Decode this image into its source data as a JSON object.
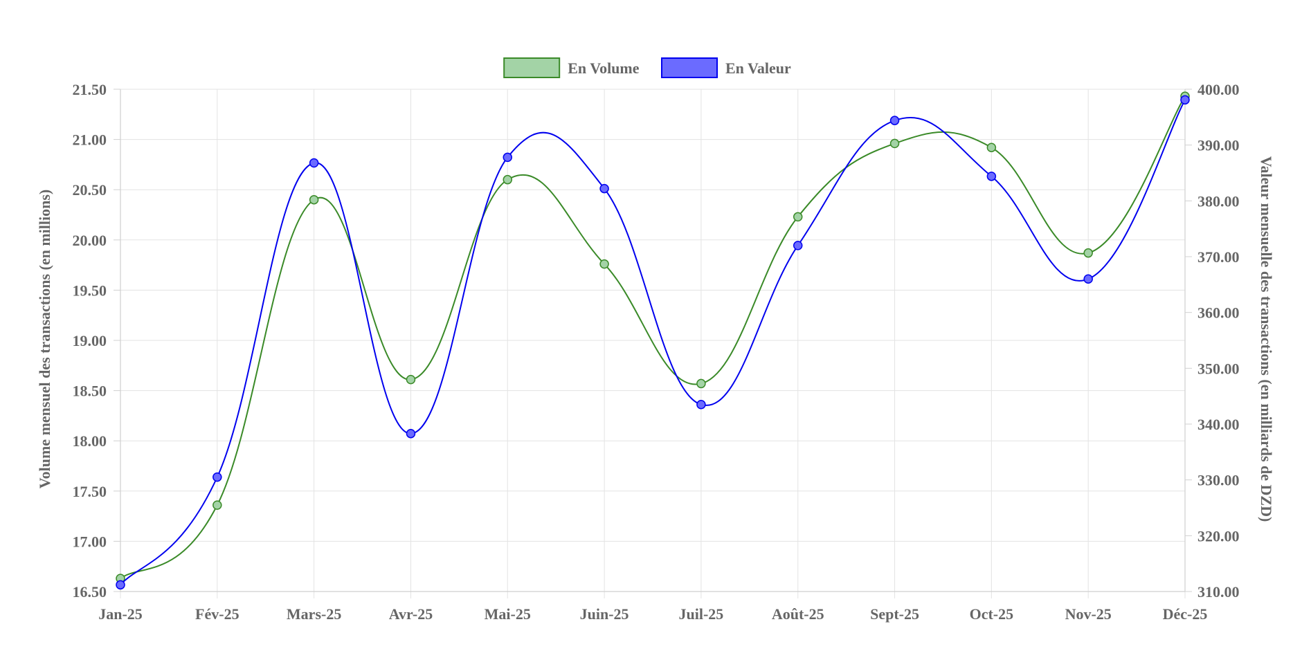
{
  "chart_data": {
    "type": "line",
    "categories": [
      "Jan-25",
      "Fév-25",
      "Mars-25",
      "Avr-25",
      "Mai-25",
      "Juin-25",
      "Juil-25",
      "Août-25",
      "Sept-25",
      "Oct-25",
      "Nov-25",
      "Déc-25"
    ],
    "series": [
      {
        "name": "En Volume",
        "axis": "left",
        "color": "#3a8a28",
        "fill": "#a3d3a6",
        "values": [
          16.63,
          17.36,
          20.4,
          18.61,
          20.6,
          19.76,
          18.57,
          20.23,
          20.96,
          20.92,
          19.87,
          21.43
        ]
      },
      {
        "name": "En Valeur",
        "axis": "right",
        "color": "#0000ee",
        "fill": "#6b6bff",
        "values": [
          311.2,
          330.5,
          386.8,
          338.3,
          387.8,
          382.2,
          343.5,
          372.0,
          394.4,
          384.4,
          366.0,
          398.1
        ]
      }
    ],
    "y_left": {
      "label": "Volume mensuel des transactions (en millions)",
      "min": 16.5,
      "max": 21.5,
      "step": 0.5,
      "tick_labels": [
        "16.50",
        "17.00",
        "17.50",
        "18.00",
        "18.50",
        "19.00",
        "19.50",
        "20.00",
        "20.50",
        "21.00",
        "21.50"
      ]
    },
    "y_right": {
      "label": "Valeur mensuelle des transactions (en milliards de DZD)",
      "min": 310,
      "max": 400,
      "step": 10,
      "tick_labels": [
        "310.00",
        "320.00",
        "330.00",
        "340.00",
        "350.00",
        "360.00",
        "370.00",
        "380.00",
        "390.00",
        "400.00"
      ]
    },
    "grid": true,
    "legend_position": "top-center",
    "curve": "smooth"
  }
}
